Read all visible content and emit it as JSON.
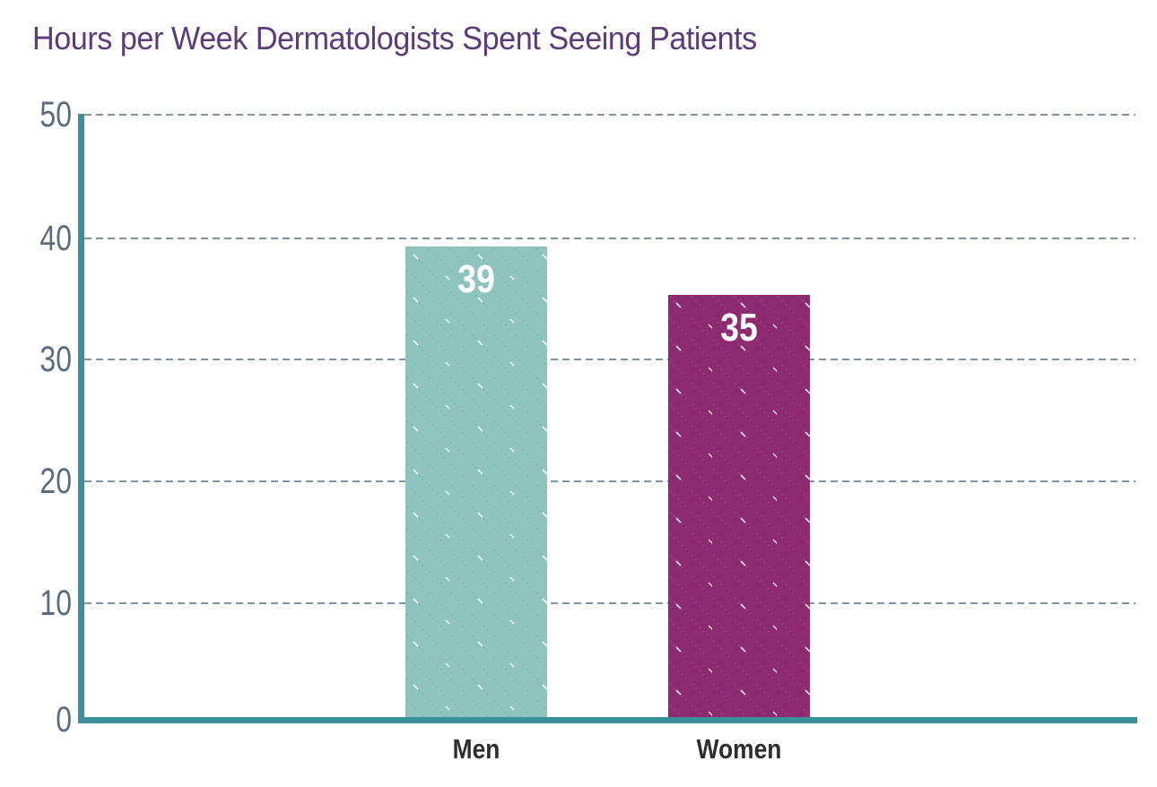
{
  "chart_data": {
    "type": "bar",
    "title": "Hours per Week Dermatologists Spent Seeing Patients",
    "categories": [
      "Men",
      "Women"
    ],
    "values": [
      39,
      35
    ],
    "xlabel": "",
    "ylabel": "",
    "ylim": [
      0,
      50
    ],
    "yticks": [
      0,
      10,
      20,
      30,
      40,
      50
    ],
    "grid": "horizontal-dashed",
    "legend": "none",
    "bar_colors": [
      "#8fc3bd",
      "#8d2a70"
    ],
    "bar_pattern": "diagonal-dotted-lines",
    "axis_color": "#3e8f9e",
    "gridline_color": "#7f93a4",
    "title_color": "#5d3b78",
    "tick_label_color": "#5a6c7d",
    "category_label_color": "#2e2e2e",
    "value_label_color": "#ffffff"
  }
}
